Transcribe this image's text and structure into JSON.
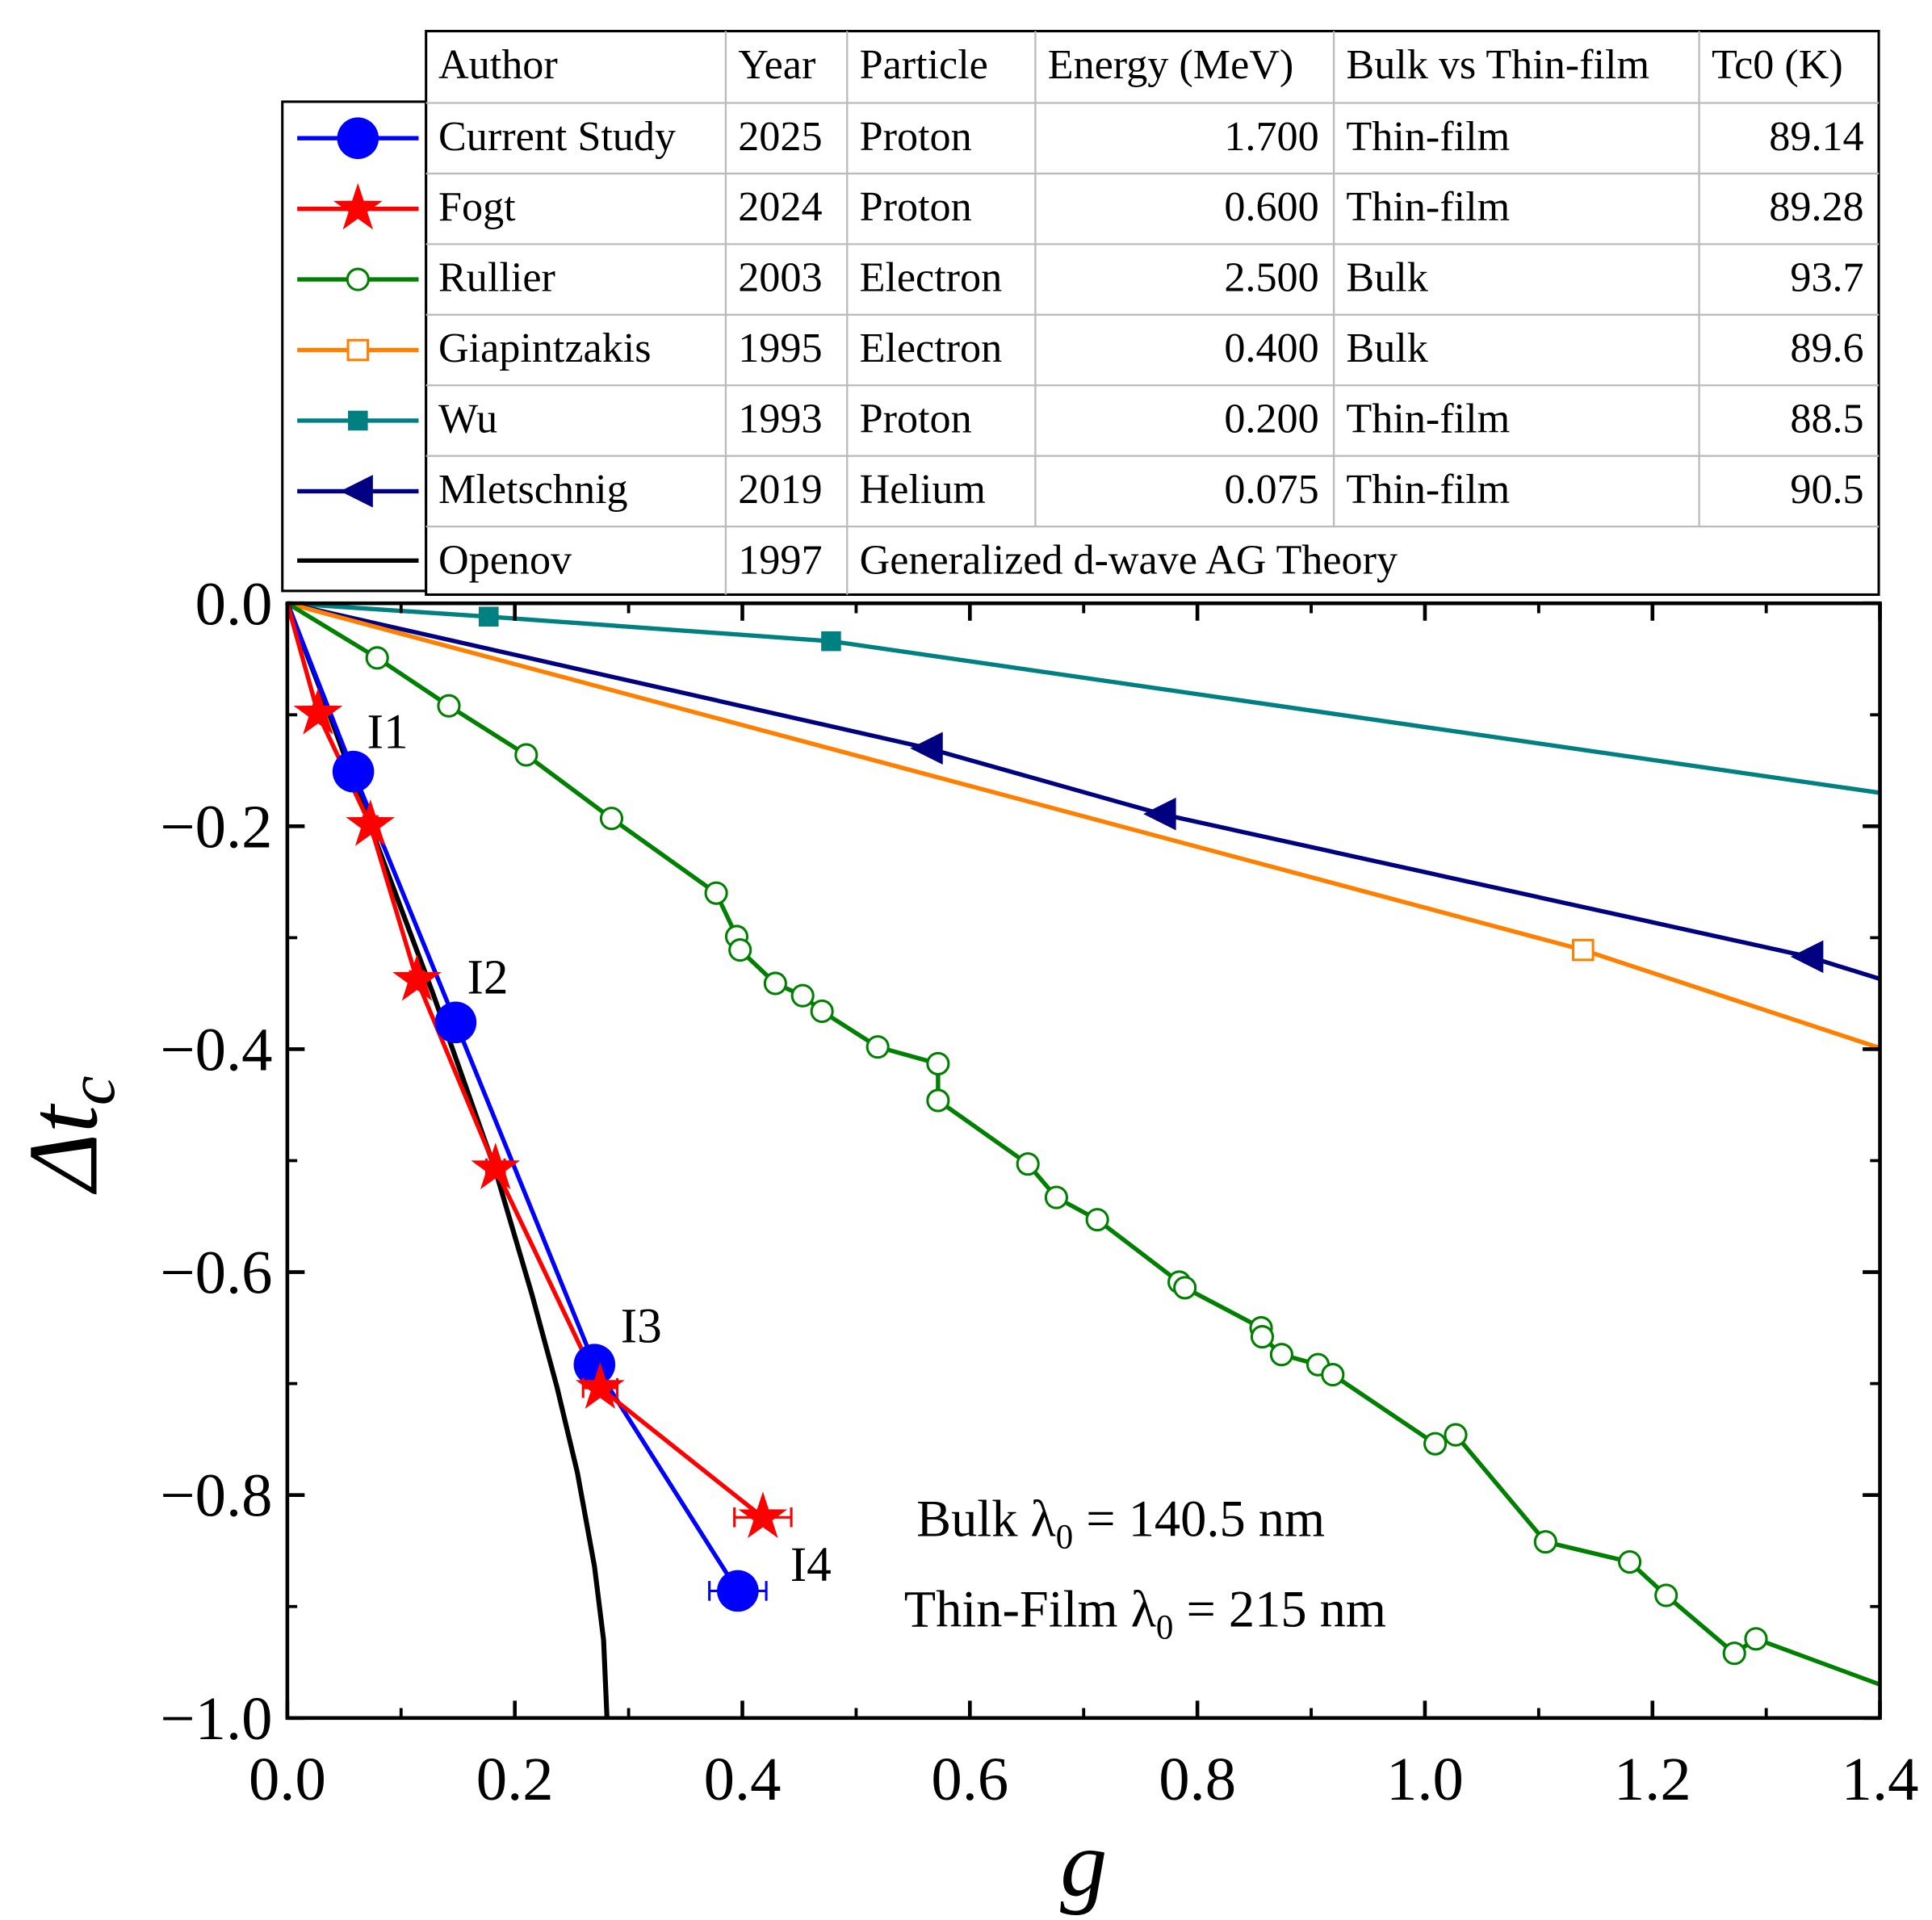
{
  "chart_data": {
    "type": "line",
    "xlabel": "g",
    "ylabel": "Δt_c",
    "xlabel_text": "g",
    "ylabel_main": "Δt",
    "ylabel_sub": "c",
    "xlim": [
      0,
      1.4
    ],
    "ylim": [
      -1.0,
      0.0
    ],
    "xticks": [
      "0.0",
      "0.2",
      "0.4",
      "0.6",
      "0.8",
      "1.0",
      "1.2",
      "1.4"
    ],
    "yticks": [
      "0.0",
      "−0.2",
      "−0.4",
      "−0.6",
      "−0.8",
      "−1.0"
    ],
    "grid": false,
    "legend_position": "top-left table",
    "series": [
      {
        "name": "Current Study",
        "color": "#0000ff",
        "marker": "circle",
        "line": [
          [
            0,
            0
          ],
          [
            0.058,
            -0.151
          ],
          [
            0.148,
            -0.376
          ],
          [
            0.27,
            -0.683
          ],
          [
            0.396,
            -0.886
          ]
        ],
        "points": [
          [
            0.058,
            -0.151
          ],
          [
            0.148,
            -0.376
          ],
          [
            0.27,
            -0.683
          ],
          [
            0.396,
            -0.886
          ]
        ],
        "xerr": [
          0.004,
          0.004,
          0.01,
          0.025
        ]
      },
      {
        "name": "Fogt",
        "color": "#ff0000",
        "marker": "star",
        "line": [
          [
            0,
            0
          ],
          [
            0.027,
            -0.099
          ],
          [
            0.073,
            -0.199
          ],
          [
            0.114,
            -0.338
          ],
          [
            0.183,
            -0.507
          ],
          [
            0.275,
            -0.704
          ],
          [
            0.418,
            -0.82
          ]
        ],
        "points": [
          [
            0.027,
            -0.099
          ],
          [
            0.073,
            -0.199
          ],
          [
            0.114,
            -0.338
          ],
          [
            0.183,
            -0.507
          ],
          [
            0.275,
            -0.704
          ],
          [
            0.418,
            -0.82
          ]
        ],
        "xerr": [
          0.003,
          0.006,
          0.006,
          0.008,
          0.015,
          0.025
        ]
      },
      {
        "name": "Rullier",
        "color": "#008000",
        "marker": "open-circle",
        "line": [
          [
            0,
            0
          ],
          [
            0.079,
            -0.049
          ],
          [
            0.142,
            -0.092
          ],
          [
            0.21,
            -0.136
          ],
          [
            0.285,
            -0.193
          ],
          [
            0.377,
            -0.26
          ],
          [
            0.395,
            -0.299
          ],
          [
            0.398,
            -0.311
          ],
          [
            0.429,
            -0.341
          ],
          [
            0.453,
            -0.352
          ],
          [
            0.47,
            -0.366
          ],
          [
            0.519,
            -0.398
          ],
          [
            0.572,
            -0.413
          ],
          [
            0.572,
            -0.446
          ],
          [
            0.651,
            -0.503
          ],
          [
            0.676,
            -0.533
          ],
          [
            0.712,
            -0.553
          ],
          [
            0.784,
            -0.609
          ],
          [
            0.789,
            -0.614
          ],
          [
            0.856,
            -0.65
          ],
          [
            0.857,
            -0.658
          ],
          [
            0.874,
            -0.674
          ],
          [
            0.906,
            -0.683
          ],
          [
            0.919,
            -0.692
          ],
          [
            1.009,
            -0.754
          ],
          [
            1.027,
            -0.746
          ],
          [
            1.106,
            -0.842
          ],
          [
            1.18,
            -0.86
          ],
          [
            1.212,
            -0.89
          ],
          [
            1.272,
            -0.942
          ],
          [
            1.291,
            -0.929
          ],
          [
            1.4,
            -0.97
          ]
        ],
        "points": [
          [
            0.079,
            -0.049
          ],
          [
            0.142,
            -0.092
          ],
          [
            0.21,
            -0.136
          ],
          [
            0.285,
            -0.193
          ],
          [
            0.377,
            -0.26
          ],
          [
            0.395,
            -0.299
          ],
          [
            0.398,
            -0.311
          ],
          [
            0.429,
            -0.341
          ],
          [
            0.453,
            -0.352
          ],
          [
            0.47,
            -0.366
          ],
          [
            0.519,
            -0.398
          ],
          [
            0.572,
            -0.413
          ],
          [
            0.572,
            -0.446
          ],
          [
            0.651,
            -0.503
          ],
          [
            0.676,
            -0.533
          ],
          [
            0.712,
            -0.553
          ],
          [
            0.784,
            -0.609
          ],
          [
            0.789,
            -0.614
          ],
          [
            0.856,
            -0.65
          ],
          [
            0.857,
            -0.658
          ],
          [
            0.874,
            -0.674
          ],
          [
            0.906,
            -0.683
          ],
          [
            0.919,
            -0.692
          ],
          [
            1.009,
            -0.754
          ],
          [
            1.027,
            -0.746
          ],
          [
            1.106,
            -0.842
          ],
          [
            1.18,
            -0.86
          ],
          [
            1.212,
            -0.89
          ],
          [
            1.272,
            -0.942
          ],
          [
            1.291,
            -0.929
          ]
        ]
      },
      {
        "name": "Giapintzakis",
        "color": "#ff8000",
        "marker": "open-square",
        "line": [
          [
            0,
            0
          ],
          [
            1.139,
            -0.311
          ],
          [
            1.4,
            -0.399
          ]
        ],
        "points": [
          [
            1.139,
            -0.311
          ]
        ]
      },
      {
        "name": "Wu",
        "color": "#008080",
        "marker": "square",
        "line": [
          [
            0,
            0
          ],
          [
            0.177,
            -0.012
          ],
          [
            0.478,
            -0.034
          ],
          [
            1.4,
            -0.17
          ]
        ],
        "points": [
          [
            0.177,
            -0.012
          ],
          [
            0.478,
            -0.034
          ]
        ]
      },
      {
        "name": "Mletschnig",
        "color": "#000080",
        "marker": "left-triangle",
        "line": [
          [
            0,
            0
          ],
          [
            0.563,
            -0.13
          ],
          [
            0.768,
            -0.189
          ],
          [
            1.337,
            -0.317
          ],
          [
            1.4,
            -0.337
          ]
        ],
        "points": [
          [
            0.563,
            -0.13
          ],
          [
            0.768,
            -0.189
          ],
          [
            1.337,
            -0.317
          ]
        ]
      },
      {
        "name": "Openov",
        "color": "#000000",
        "marker": "none",
        "line": [
          [
            0,
            0
          ],
          [
            0.03,
            -0.08
          ],
          [
            0.074,
            -0.203
          ],
          [
            0.128,
            -0.35
          ],
          [
            0.183,
            -0.509
          ],
          [
            0.215,
            -0.62
          ],
          [
            0.237,
            -0.703
          ],
          [
            0.255,
            -0.78
          ],
          [
            0.27,
            -0.864
          ],
          [
            0.278,
            -0.93
          ],
          [
            0.281,
            -1.0
          ]
        ],
        "points": []
      }
    ],
    "annotations": [
      {
        "text": "I1",
        "x": 0.07,
        "y": -0.13
      },
      {
        "text": "I2",
        "x": 0.158,
        "y": -0.35
      },
      {
        "text": "I3",
        "x": 0.293,
        "y": -0.663
      },
      {
        "text": "I4",
        "x": 0.442,
        "y": -0.877
      }
    ],
    "notes": [
      {
        "pre": "Bulk λ",
        "sub": "0",
        "post": " = 140.5 nm"
      },
      {
        "pre": "Thin-Film λ",
        "sub": "0",
        "post": " = 215 nm"
      }
    ],
    "table": {
      "headers": [
        "Author",
        "Year",
        "Particle",
        "Energy (MeV)",
        "Bulk vs Thin-film",
        "Tc0 (K)"
      ],
      "rows": [
        [
          "Current Study",
          "2025",
          "Proton",
          "1.700",
          "Thin-film",
          "89.14"
        ],
        [
          "Fogt",
          "2024",
          "Proton",
          "0.600",
          "Thin-film",
          "89.28"
        ],
        [
          "Rullier",
          "2003",
          "Electron",
          "2.500",
          "Bulk",
          "93.7"
        ],
        [
          "Giapintzakis",
          "1995",
          "Electron",
          "0.400",
          "Bulk",
          "89.6"
        ],
        [
          "Wu",
          "1993",
          "Proton",
          "0.200",
          "Thin-film",
          "88.5"
        ],
        [
          "Mletschnig",
          "2019",
          "Helium",
          "0.075",
          "Thin-film",
          "90.5"
        ],
        [
          "Openov",
          "1997",
          "Generalized d-wave AG Theory"
        ]
      ]
    }
  }
}
